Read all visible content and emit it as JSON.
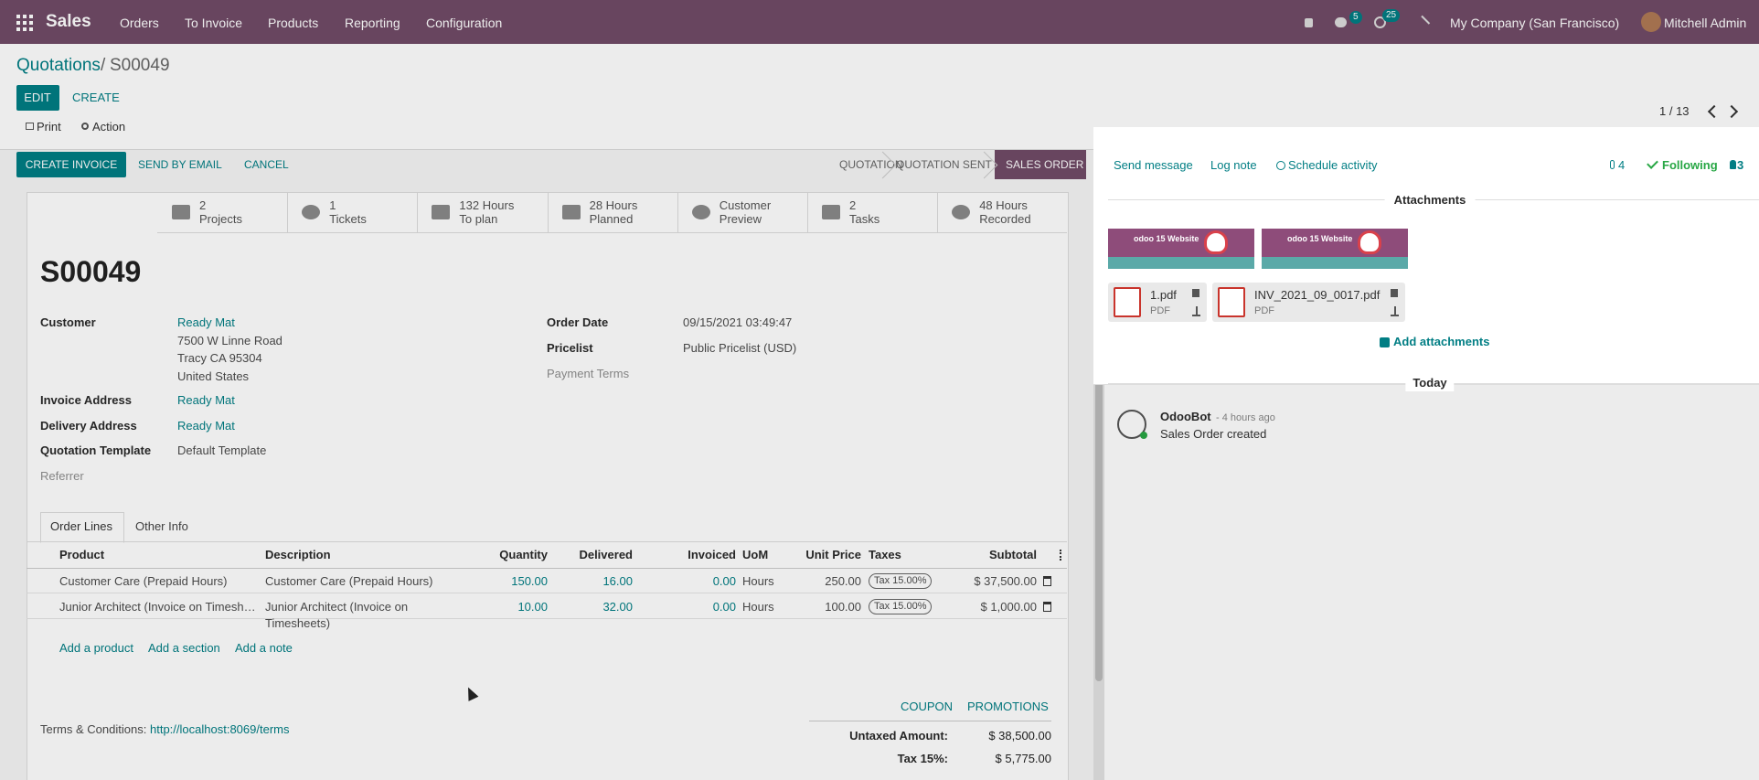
{
  "navbar": {
    "app": "Sales",
    "menu": [
      "Orders",
      "To Invoice",
      "Products",
      "Reporting",
      "Configuration"
    ],
    "messages_badge": "5",
    "activities_badge": "25",
    "company": "My Company (San Francisco)",
    "user": "Mitchell Admin"
  },
  "breadcrumb": {
    "parent": "Quotations",
    "separator": "/",
    "current": "S00049"
  },
  "buttons": {
    "edit": "EDIT",
    "create": "CREATE",
    "print": "Print",
    "action": "Action"
  },
  "pager": "1 / 13",
  "status_buttons": [
    "CREATE INVOICE",
    "SEND BY EMAIL",
    "CANCEL"
  ],
  "stages": [
    "QUOTATION",
    "QUOTATION SENT",
    "SALES ORDER"
  ],
  "smart_buttons": [
    {
      "value": "2",
      "label": "Projects"
    },
    {
      "value": "1",
      "label": "Tickets"
    },
    {
      "value": "132 Hours",
      "label": "To plan"
    },
    {
      "value": "28 Hours",
      "label": "Planned"
    },
    {
      "value": "Customer",
      "label": "Preview"
    },
    {
      "value": "2",
      "label": "Tasks"
    },
    {
      "value": "48 Hours",
      "label": "Recorded"
    }
  ],
  "order": {
    "name": "S00049",
    "fields_left": [
      {
        "label": "Customer",
        "lines": [
          "Ready Mat",
          "7500 W Linne Road",
          "Tracy CA 95304",
          "United States"
        ]
      },
      {
        "label": "Invoice Address",
        "lines": [
          "Ready Mat"
        ]
      },
      {
        "label": "Delivery Address",
        "lines": [
          "Ready Mat"
        ]
      },
      {
        "label": "Quotation Template",
        "lines": [
          "Default Template"
        ]
      },
      {
        "label": "Referrer",
        "lines": []
      }
    ],
    "fields_right": [
      {
        "label": "Order Date",
        "lines": [
          "09/15/2021 03:49:47"
        ]
      },
      {
        "label": "Pricelist",
        "lines": [
          "Public Pricelist (USD)"
        ]
      },
      {
        "label": "Payment Terms",
        "lines": []
      }
    ]
  },
  "tabs": [
    "Order Lines",
    "Other Info"
  ],
  "table": {
    "headers": [
      "Product",
      "Description",
      "Quantity",
      "Delivered",
      "Invoiced",
      "UoM",
      "Unit Price",
      "Taxes",
      "Subtotal"
    ],
    "rows": [
      [
        "Customer Care (Prepaid Hours)",
        "Customer Care (Prepaid Hours)",
        "150.00",
        "16.00",
        "0.00",
        "Hours",
        "250.00",
        "Tax 15.00%",
        "$ 37,500.00"
      ],
      [
        "Junior Architect (Invoice on Timesh…",
        "Junior Architect (Invoice on Timesheets)",
        "10.00",
        "32.00",
        "0.00",
        "Hours",
        "100.00",
        "Tax 15.00%",
        "$ 1,000.00"
      ]
    ]
  },
  "add_links": [
    "Add a product",
    "Add a section",
    "Add a note"
  ],
  "promo_buttons": [
    "COUPON",
    "PROMOTIONS"
  ],
  "terms": {
    "label": "Terms & Conditions:",
    "link": "http://localhost:8069/terms"
  },
  "totals": [
    {
      "label": "Untaxed Amount:",
      "value": "$ 38,500.00"
    },
    {
      "label": "Tax 15%:",
      "value": "$ 5,775.00"
    }
  ],
  "chatter": {
    "actions": [
      "Send message",
      "Log note",
      "Schedule activity"
    ],
    "attachment_count": "4",
    "following": "Following",
    "followers": "3",
    "attachments_title": "Attachments",
    "images": [
      {
        "caption": "odoo 15 Website"
      },
      {
        "caption": "odoo 15 Website"
      }
    ],
    "pdfs": [
      {
        "name": "1.pdf",
        "type": "PDF"
      },
      {
        "name": "INV_2021_09_0017.pdf",
        "type": "PDF"
      }
    ],
    "add_attachments": "Add attachments",
    "date_separator": "Today",
    "messages": [
      {
        "author": "OdooBot",
        "time": "- 4 hours ago",
        "body": "Sales Order created"
      }
    ]
  }
}
